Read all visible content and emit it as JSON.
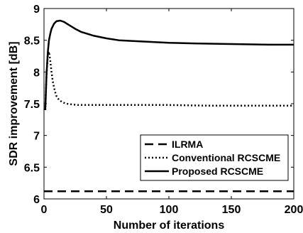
{
  "chart_data": {
    "type": "line",
    "title": "",
    "xlabel": "Number of iterations",
    "ylabel": "SDR improvement [dB]",
    "xlim": [
      0,
      200
    ],
    "ylim": [
      6,
      9
    ],
    "xticks": [
      0,
      50,
      100,
      150,
      200
    ],
    "yticks": [
      6,
      6.5,
      7,
      7.5,
      8,
      8.5,
      9
    ],
    "xtick_labels": [
      "0",
      "50",
      "100",
      "150",
      "200"
    ],
    "ytick_labels": [
      "6",
      "6.5",
      "7",
      "7.5",
      "8",
      "8.5",
      "9"
    ],
    "grid": false,
    "legend_position": "bottom-right",
    "series": [
      {
        "name": "ILRMA",
        "line_style": "dashed",
        "color": "#000000",
        "x": [
          0,
          200
        ],
        "y": [
          6.12,
          6.12
        ]
      },
      {
        "name": "Conventional RCSCME",
        "line_style": "dotted",
        "color": "#000000",
        "x": [
          1,
          2,
          3,
          4,
          5,
          6,
          7,
          8,
          9,
          10,
          12,
          15,
          18,
          22,
          27,
          35,
          45,
          60,
          80,
          100,
          130,
          160,
          200
        ],
        "y": [
          7.4,
          7.95,
          8.25,
          8.32,
          8.18,
          8.0,
          7.86,
          7.76,
          7.68,
          7.62,
          7.56,
          7.52,
          7.5,
          7.49,
          7.48,
          7.48,
          7.48,
          7.48,
          7.48,
          7.48,
          7.47,
          7.47,
          7.47
        ]
      },
      {
        "name": "Proposed RCSCME",
        "line_style": "solid",
        "color": "#000000",
        "x": [
          1,
          2,
          3,
          4,
          5,
          6,
          8,
          10,
          13,
          16,
          20,
          25,
          30,
          40,
          50,
          60,
          80,
          100,
          120,
          150,
          180,
          200
        ],
        "y": [
          7.4,
          7.95,
          8.3,
          8.5,
          8.6,
          8.68,
          8.76,
          8.8,
          8.81,
          8.79,
          8.74,
          8.68,
          8.63,
          8.57,
          8.53,
          8.5,
          8.48,
          8.46,
          8.45,
          8.44,
          8.43,
          8.43
        ]
      }
    ]
  }
}
